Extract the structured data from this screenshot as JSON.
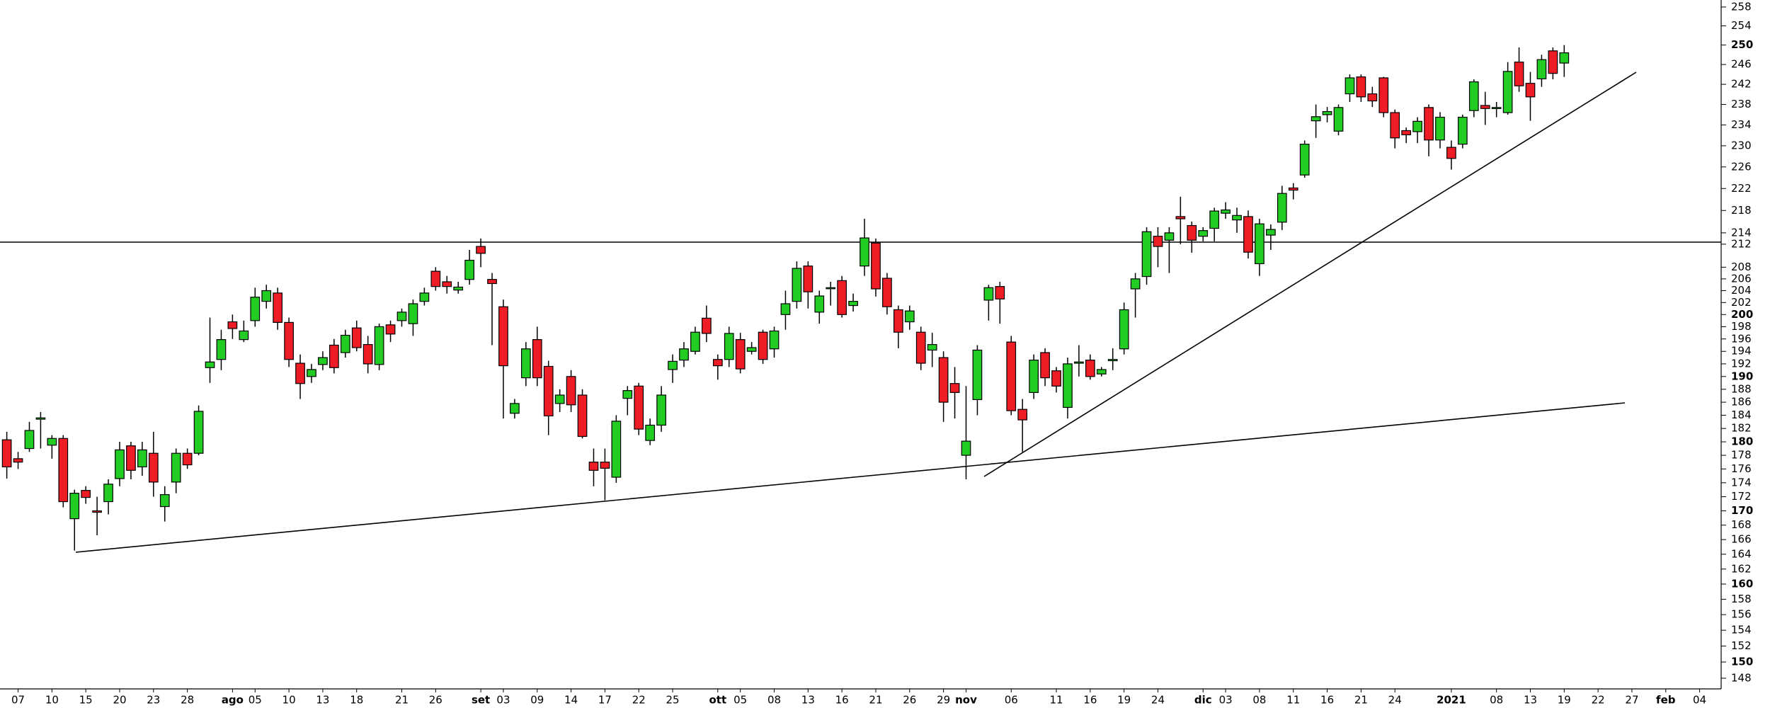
{
  "chart_data": {
    "type": "candlestick",
    "log_scale": true,
    "up_color": "#22cc22",
    "down_color": "#ee1c24",
    "ylim": [
      146.7,
      259.5
    ],
    "yticks": [
      258,
      254,
      250,
      246,
      242,
      238,
      234,
      230,
      226,
      222,
      218,
      214,
      212,
      208,
      206,
      204,
      202,
      200,
      198,
      196,
      194,
      192,
      190,
      188,
      186,
      184,
      182,
      180,
      178,
      176,
      174,
      172,
      170,
      168,
      166,
      164,
      162,
      160,
      158,
      156,
      154,
      152,
      150,
      148
    ],
    "bold_yticks": [
      250,
      200,
      190,
      180,
      170,
      160,
      150
    ],
    "categories": [
      null,
      "07",
      null,
      null,
      "10",
      null,
      null,
      "15",
      null,
      null,
      "20",
      null,
      null,
      "23",
      null,
      null,
      "28",
      null,
      null,
      null,
      "ago",
      null,
      "05",
      null,
      null,
      "10",
      null,
      null,
      "13",
      null,
      null,
      "18",
      null,
      null,
      null,
      "21",
      null,
      null,
      "26",
      null,
      null,
      null,
      "set",
      null,
      "03",
      null,
      null,
      "09",
      null,
      null,
      "14",
      null,
      null,
      "17",
      null,
      null,
      "22",
      null,
      null,
      "25",
      null,
      null,
      null,
      "ott",
      null,
      "05",
      null,
      null,
      "08",
      null,
      null,
      "13",
      null,
      null,
      "16",
      null,
      null,
      "21",
      null,
      null,
      "26",
      null,
      null,
      "29",
      null,
      "nov",
      null,
      null,
      null,
      "06",
      null,
      null,
      null,
      "11",
      null,
      null,
      "16",
      null,
      null,
      "19",
      null,
      null,
      "24",
      null,
      null,
      null,
      "dic",
      null,
      "03",
      null,
      null,
      "08",
      null,
      null,
      "11",
      null,
      null,
      "16",
      null,
      null,
      "21",
      null,
      null,
      "24",
      null,
      null,
      null,
      null,
      "2021",
      null,
      null,
      null,
      "08",
      null,
      null,
      "13",
      null,
      null,
      "19",
      null,
      null,
      "22",
      null,
      null,
      "27",
      null,
      null,
      "feb",
      null,
      null,
      "04",
      null
    ],
    "open": [
      180.3,
      177.5,
      179,
      183.4,
      179.5,
      180.5,
      168.9,
      172.9,
      170,
      171.3,
      174.6,
      179.4,
      176.3,
      178.3,
      170.6,
      174.1,
      178.3,
      178.3,
      191.4,
      192.7,
      198.8,
      195.9,
      199,
      202.2,
      203.6,
      198.7,
      192.1,
      190,
      191.9,
      195,
      193.8,
      197.8,
      195.1,
      191.9,
      198.3,
      199,
      198.5,
      202.2,
      207.3,
      205.5,
      204.1,
      205.9,
      211.6,
      205.9,
      201.3,
      184.3,
      189.8,
      195.9,
      191.6,
      185.8,
      190,
      187.1,
      177,
      177,
      174.8,
      186.6,
      188.5,
      180.2,
      182.5,
      191.1,
      192.6,
      194,
      199.4,
      192.7,
      192.7,
      195.9,
      194,
      197.1,
      194.4,
      200,
      202.2,
      208.2,
      200.4,
      204.5,
      205.7,
      201.5,
      208.2,
      212.2,
      206.1,
      200.8,
      198.8,
      197.1,
      194.2,
      193,
      188.9,
      178,
      186.4,
      202.4,
      204.7,
      195.5,
      184.9,
      187.5,
      193.8,
      190.9,
      185.2,
      192.1,
      192.6,
      190.4,
      192.5,
      194.4,
      204.3,
      206.4,
      213.4,
      212.7,
      216.9,
      215.3,
      213.4,
      214.8,
      217.5,
      216.3,
      216.9,
      208.6,
      213.6,
      215.9,
      222.1,
      224.5,
      234.8,
      236,
      232.8,
      240.1,
      243.5,
      240.1,
      243.3,
      236.4,
      232.9,
      232.7,
      237.4,
      231.1,
      229.7,
      230.3,
      236.8,
      237.8,
      237.4,
      236.4,
      246.5,
      242.2,
      243.1,
      248.8,
      246.3,
      null,
      null,
      null,
      null,
      null,
      null,
      null,
      null,
      null,
      null,
      null,
      null,
      null
    ],
    "high": [
      181.5,
      178.5,
      183,
      184.5,
      181,
      181,
      173,
      173.5,
      172,
      174.5,
      180,
      180,
      180,
      181.5,
      173.5,
      179,
      179,
      185.5,
      199.5,
      197.5,
      200,
      199,
      204.5,
      205,
      204.5,
      199.5,
      193.5,
      192,
      194,
      196,
      197.5,
      199,
      196.5,
      198.5,
      199,
      201,
      202.5,
      204.5,
      208,
      206.5,
      205.5,
      211,
      213,
      207,
      202.5,
      186.5,
      195.5,
      198,
      192.5,
      188,
      191,
      188,
      179,
      179,
      184,
      188.5,
      189,
      183.5,
      188.5,
      193.5,
      195.5,
      198,
      201.5,
      193.5,
      198,
      197,
      195.5,
      197.5,
      198,
      204,
      209,
      209,
      204,
      205.5,
      206.5,
      203.5,
      216.5,
      213,
      207,
      201.5,
      201.5,
      198,
      197,
      194,
      191.5,
      188.5,
      195,
      205,
      205.5,
      196.5,
      186.5,
      193.5,
      194.5,
      191.5,
      193,
      195,
      193.5,
      191.5,
      194.5,
      202,
      207,
      215,
      215,
      215,
      220.5,
      216,
      215,
      218.5,
      219.5,
      218.5,
      218,
      216.5,
      215.5,
      222.5,
      223,
      231,
      238,
      237.5,
      238,
      244,
      244,
      241.5,
      243.5,
      237,
      233.5,
      235.5,
      238,
      236.5,
      231,
      236,
      243,
      240.5,
      238.5,
      246.5,
      249.5,
      244.5,
      248,
      249.5,
      250,
      null,
      null,
      null,
      null,
      null,
      null,
      null,
      null,
      null,
      null,
      null,
      null,
      null
    ],
    "low": [
      174.6,
      176,
      178.5,
      179,
      177.5,
      170.5,
      164.5,
      171,
      166.6,
      169.5,
      173.5,
      174.5,
      175,
      172,
      168.5,
      172.5,
      176,
      178,
      189,
      191,
      196,
      195.5,
      198,
      201,
      197.5,
      191.5,
      186.5,
      189,
      191,
      190.5,
      193,
      194,
      190.5,
      191,
      195.5,
      198,
      196.5,
      201.5,
      204,
      203.5,
      203.5,
      205,
      208,
      195,
      183.5,
      183.5,
      188.5,
      188.5,
      181,
      184.5,
      184.5,
      180.5,
      173.5,
      171.5,
      174,
      184,
      181,
      179.5,
      181.5,
      189,
      191.5,
      193.5,
      195.5,
      189.5,
      191.5,
      190.5,
      193.5,
      192,
      193,
      197.5,
      201,
      201,
      198.5,
      201.5,
      199.5,
      200.5,
      206.5,
      203,
      200,
      194.5,
      197.5,
      191,
      191.5,
      183,
      183.5,
      174.5,
      184,
      199,
      198.5,
      184,
      178.5,
      186.5,
      188.5,
      187.5,
      183.5,
      190,
      189.5,
      190,
      191,
      193.5,
      199.5,
      205,
      208,
      207,
      212,
      210.5,
      212.5,
      212.5,
      216.5,
      214,
      209.5,
      206.5,
      211,
      214.5,
      220,
      224,
      231.5,
      234.5,
      232,
      238.5,
      238.5,
      237.5,
      235.5,
      229.5,
      230.5,
      230.5,
      228,
      229.5,
      225.5,
      229.5,
      235.5,
      234,
      235.5,
      236,
      240.5,
      234.8,
      241.5,
      243,
      243.5,
      null,
      null,
      null,
      null,
      null,
      null,
      null,
      null,
      null,
      null,
      null,
      null,
      null
    ],
    "close": [
      176.3,
      177,
      181.7,
      183.6,
      180.5,
      171.3,
      172.5,
      171.9,
      169.8,
      173.8,
      178.8,
      175.8,
      178.8,
      174.1,
      172.3,
      178.3,
      176.6,
      184.6,
      192.3,
      195.9,
      197.7,
      197.3,
      202.9,
      204,
      198.7,
      192.7,
      188.9,
      191.1,
      193,
      191.4,
      196.6,
      194.6,
      192,
      198,
      196.8,
      200.4,
      201.8,
      203.6,
      204.7,
      204.7,
      204.6,
      209.2,
      210.4,
      205.2,
      191.7,
      185.8,
      194.4,
      189.8,
      183.9,
      187.1,
      185.6,
      180.8,
      175.8,
      176.1,
      183.1,
      187.8,
      181.9,
      182.5,
      187.1,
      192.4,
      194.4,
      197.1,
      196.9,
      191.7,
      196.9,
      191.2,
      194.6,
      192.7,
      197.3,
      201.8,
      207.8,
      203.8,
      203.1,
      204.5,
      200,
      202.2,
      213.1,
      204.3,
      201.3,
      197.1,
      200.6,
      192.1,
      195.1,
      186,
      187.5,
      180.1,
      194.2,
      204.5,
      202.6,
      184.7,
      183.3,
      192.6,
      189.8,
      188.5,
      192,
      192.3,
      190,
      191.1,
      192.7,
      200.8,
      206,
      214.2,
      211.6,
      214,
      216.5,
      212.7,
      214.4,
      217.9,
      218.1,
      217.1,
      210.6,
      215.6,
      214.6,
      221.1,
      221.7,
      230.3,
      235.6,
      236.6,
      237.4,
      243.3,
      239.5,
      238.7,
      236.4,
      231.5,
      232.1,
      234.7,
      231.1,
      235.5,
      227.6,
      235.5,
      242.5,
      237.2,
      237.4,
      244.6,
      241.7,
      239.5,
      247,
      244.2,
      248.4,
      null,
      null,
      null,
      null,
      null,
      null,
      null,
      null,
      null,
      null,
      null,
      null,
      null
    ]
  }
}
